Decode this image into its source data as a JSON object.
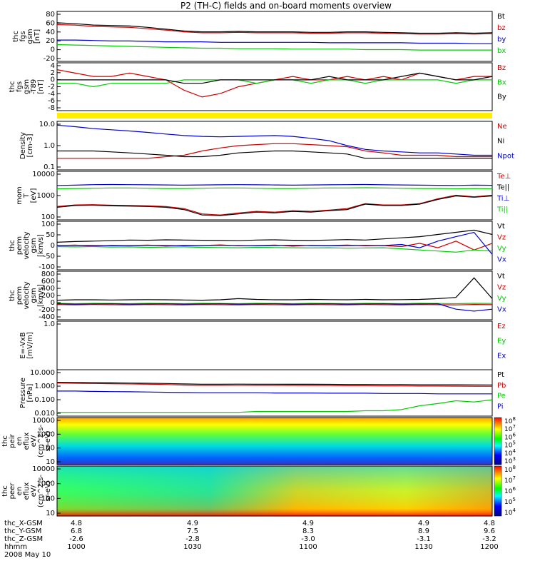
{
  "title": "P2 (TH-C) fields and on-board moments overview",
  "chart_data": [
    {
      "type": "line",
      "panel": "fgs_gsm",
      "ylabel": [
        "thc",
        "fgs",
        "gsm",
        "[nT]"
      ],
      "yticks": [
        "80",
        "60",
        "40",
        "20",
        "0",
        "-20"
      ],
      "ylim": [
        -25,
        85
      ],
      "series": [
        {
          "name": "Bt",
          "color": "#000000",
          "values": [
            60,
            58,
            55,
            54,
            53,
            50,
            46,
            42,
            40,
            40,
            41,
            40,
            40,
            40,
            39,
            39,
            40,
            40,
            39,
            38,
            37,
            37,
            38,
            37,
            38
          ]
        },
        {
          "name": "bz",
          "color": "#cc0000",
          "values": [
            56,
            55,
            52,
            51,
            50,
            47,
            44,
            40,
            38,
            38,
            39,
            38,
            38,
            38,
            37,
            37,
            38,
            38,
            37,
            36,
            35,
            35,
            36,
            35,
            36
          ]
        },
        {
          "name": "by",
          "color": "#0000cc",
          "values": [
            22,
            22,
            21,
            20,
            20,
            19,
            18,
            18,
            18,
            17,
            17,
            17,
            17,
            17,
            17,
            16,
            16,
            16,
            16,
            16,
            15,
            15,
            15,
            14,
            14
          ]
        },
        {
          "name": "bx",
          "color": "#00cc00",
          "values": [
            12,
            11,
            10,
            9,
            8,
            7,
            6,
            5,
            4,
            4,
            3,
            3,
            3,
            2,
            2,
            2,
            2,
            1,
            1,
            1,
            0,
            0,
            0,
            0,
            0
          ]
        }
      ]
    },
    {
      "type": "line",
      "panel": "fgs_gsm_dt",
      "ylabel": [
        "thc",
        "fgs",
        "gsm",
        "-T89",
        "[nT]"
      ],
      "yticks": [
        "4",
        "2",
        "0",
        "-2",
        "-4",
        "-6",
        "-8"
      ],
      "ylim": [
        -9,
        5
      ],
      "series": [
        {
          "name": "Bz",
          "color": "#cc0000",
          "values": [
            3,
            2,
            1,
            1,
            2,
            1,
            0,
            -3,
            -5,
            -4,
            -2,
            -1,
            0,
            1,
            0,
            0,
            1,
            0,
            1,
            0,
            2,
            1,
            0,
            1,
            1
          ]
        },
        {
          "name": "Bx",
          "color": "#00cc00",
          "values": [
            -1,
            -1,
            -2,
            -1,
            -1,
            -1,
            -1,
            0,
            0,
            0,
            0,
            -1,
            0,
            0,
            -1,
            0,
            0,
            -1,
            0,
            0,
            0,
            0,
            -1,
            0,
            0
          ]
        },
        {
          "name": "By",
          "color": "#000000",
          "values": [
            0,
            0,
            0,
            0,
            0,
            0,
            0,
            -1,
            -1,
            0,
            0,
            0,
            0,
            0,
            0,
            1,
            0,
            0,
            0,
            1,
            2,
            1,
            0,
            0,
            1
          ]
        }
      ]
    },
    {
      "type": "line",
      "panel": "density",
      "ylabel": [
        "Density",
        "[cm-3]"
      ],
      "yticks": [
        "10.0",
        "1.0",
        "0.1"
      ],
      "log": true,
      "ylim": [
        0.1,
        10
      ],
      "series": [
        {
          "name": "Ne",
          "color": "#cc0000",
          "values": [
            0.3,
            0.3,
            0.3,
            0.3,
            0.3,
            0.3,
            0.35,
            0.4,
            0.6,
            0.8,
            1.0,
            1.1,
            1.2,
            1.2,
            1.1,
            1.0,
            0.9,
            0.6,
            0.5,
            0.4,
            0.4,
            0.4,
            0.35,
            0.35,
            0.35
          ]
        },
        {
          "name": "Ni",
          "color": "#000000",
          "values": [
            0.6,
            0.6,
            0.6,
            0.55,
            0.5,
            0.45,
            0.4,
            0.35,
            0.35,
            0.4,
            0.5,
            0.55,
            0.6,
            0.6,
            0.55,
            0.5,
            0.45,
            0.3,
            0.3,
            0.3,
            0.3,
            0.3,
            0.3,
            0.3,
            0.3
          ]
        },
        {
          "name": "Npot",
          "color": "#0000cc",
          "values": [
            7,
            6,
            5,
            4.5,
            4,
            3.5,
            3,
            2.6,
            2.4,
            2.3,
            2.4,
            2.5,
            2.6,
            2.4,
            2.0,
            1.6,
            1.0,
            0.7,
            0.6,
            0.55,
            0.5,
            0.5,
            0.45,
            0.4,
            0.4
          ]
        }
      ]
    },
    {
      "type": "line",
      "panel": "mom_T",
      "ylabel": [
        "mom",
        "T",
        "[eV]"
      ],
      "yticks": [
        "10000",
        "1000",
        "100"
      ],
      "log": true,
      "ylim": [
        30,
        30000
      ],
      "series": [
        {
          "name": "Te⊥",
          "color": "#cc0000",
          "values": [
            200,
            250,
            260,
            240,
            230,
            220,
            200,
            150,
            70,
            60,
            80,
            100,
            90,
            110,
            100,
            120,
            150,
            300,
            250,
            250,
            300,
            600,
            1000,
            800,
            1000
          ]
        },
        {
          "name": "Te||",
          "color": "#000000",
          "values": [
            180,
            230,
            240,
            220,
            210,
            200,
            180,
            130,
            60,
            55,
            70,
            90,
            80,
            100,
            90,
            110,
            130,
            280,
            230,
            230,
            280,
            550,
            900,
            750,
            900
          ]
        },
        {
          "name": "Ti⊥",
          "color": "#0000cc",
          "values": [
            4000,
            4200,
            4500,
            4600,
            4500,
            4400,
            4300,
            4200,
            4300,
            4400,
            4500,
            4400,
            4300,
            4200,
            4300,
            4400,
            4500,
            4600,
            4400,
            4300,
            4200,
            4100,
            4000,
            4200,
            4100
          ]
        },
        {
          "name": "Ti||",
          "color": "#00cc00",
          "values": [
            2500,
            2600,
            2700,
            2800,
            2800,
            2700,
            2600,
            2600,
            2700,
            2800,
            2800,
            2700,
            2600,
            2600,
            2700,
            2800,
            2800,
            2900,
            2800,
            2700,
            2600,
            2600,
            2500,
            2600,
            2500
          ]
        }
      ]
    },
    {
      "type": "line",
      "panel": "perm_velocity",
      "ylabel": [
        "thc",
        "perm",
        "velocity",
        "gsm",
        "[km/s]"
      ],
      "yticks": [
        "100",
        "50",
        "0",
        "-50",
        "-100"
      ],
      "ylim": [
        -110,
        110
      ],
      "series": [
        {
          "name": "Vt",
          "color": "#000000",
          "values": [
            15,
            18,
            20,
            22,
            25,
            24,
            26,
            25,
            24,
            23,
            22,
            25,
            26,
            24,
            23,
            25,
            27,
            25,
            30,
            35,
            40,
            50,
            60,
            70,
            50
          ]
        },
        {
          "name": "Vz",
          "color": "#cc0000",
          "values": [
            0,
            2,
            -3,
            1,
            0,
            2,
            -2,
            1,
            0,
            3,
            -1,
            0,
            2,
            -3,
            1,
            0,
            2,
            -1,
            0,
            -5,
            10,
            -10,
            20,
            -20,
            10
          ]
        },
        {
          "name": "Vy",
          "color": "#00cc00",
          "values": [
            -5,
            -6,
            -5,
            -7,
            -6,
            -8,
            -7,
            -6,
            -8,
            -9,
            -10,
            -8,
            -9,
            -10,
            -11,
            -10,
            -12,
            -11,
            -10,
            -15,
            -20,
            -25,
            -30,
            -20,
            -25
          ]
        },
        {
          "name": "Vx",
          "color": "#0000cc",
          "values": [
            0,
            1,
            0,
            -1,
            0,
            1,
            0,
            -1,
            0,
            1,
            0,
            -1,
            0,
            1,
            0,
            -1,
            0,
            1,
            0,
            5,
            -10,
            20,
            40,
            60,
            -40
          ]
        }
      ]
    },
    {
      "type": "line",
      "panel": "perm_velocity_wide",
      "ylabel": [
        "thc",
        "perm",
        "velocity",
        "gsm",
        "[km/s]"
      ],
      "yticks": [
        "800",
        "600",
        "400",
        "200",
        "0",
        "-200",
        "-400"
      ],
      "ylim": [
        -420,
        820
      ],
      "series": [
        {
          "name": "Vt",
          "color": "#000000",
          "values": [
            80,
            90,
            90,
            85,
            90,
            95,
            90,
            85,
            80,
            90,
            120,
            100,
            90,
            90,
            100,
            95,
            90,
            100,
            90,
            95,
            100,
            120,
            150,
            650,
            120
          ]
        },
        {
          "name": "Vz",
          "color": "#cc0000",
          "values": [
            -30,
            -40,
            -30,
            -35,
            -40,
            -30,
            -35,
            -40,
            -30,
            -35,
            -40,
            -30,
            -35,
            -40,
            -30,
            -35,
            -40,
            -30,
            -35,
            -40,
            -30,
            -35,
            -40,
            -30,
            -35
          ]
        },
        {
          "name": "Vy",
          "color": "#00cc00",
          "values": [
            0,
            -10,
            0,
            -5,
            -10,
            0,
            -5,
            -10,
            0,
            -5,
            -10,
            0,
            -5,
            -10,
            0,
            -5,
            -10,
            0,
            -5,
            -10,
            0,
            -5,
            -10,
            0,
            -5
          ]
        },
        {
          "name": "Vx",
          "color": "#0000cc",
          "values": [
            -10,
            -20,
            -15,
            -10,
            -20,
            -15,
            -10,
            -20,
            -15,
            -10,
            -20,
            -15,
            -10,
            -20,
            -15,
            -10,
            -20,
            -15,
            -10,
            -20,
            -15,
            -10,
            -150,
            -200,
            -150
          ]
        }
      ]
    },
    {
      "type": "line",
      "panel": "efield",
      "ylabel": [
        "E=-VxB",
        "[mV/m]"
      ],
      "yticks": [
        "1.0"
      ],
      "series": [
        {
          "name": "Ez",
          "color": "#cc0000",
          "values": []
        },
        {
          "name": "Ey",
          "color": "#00cc00",
          "values": []
        },
        {
          "name": "Ex",
          "color": "#0000cc",
          "values": []
        }
      ]
    },
    {
      "type": "line",
      "panel": "pressure",
      "ylabel": [
        "Pressure",
        "[nPa]"
      ],
      "yticks": [
        "10.000",
        "1.000",
        "0.100",
        "0.010"
      ],
      "log": true,
      "ylim": [
        0.003,
        15
      ],
      "series": [
        {
          "name": "Pt",
          "color": "#000000",
          "values": [
            1.5,
            1.45,
            1.4,
            1.35,
            1.3,
            1.25,
            1.2,
            1.1,
            1.05,
            1.05,
            1.06,
            1.05,
            1.05,
            1.04,
            1.03,
            1.02,
            1.0,
            1.0,
            0.98,
            0.97,
            0.95,
            0.95,
            0.94,
            0.93,
            0.92
          ]
        },
        {
          "name": "Pb",
          "color": "#cc0000",
          "values": [
            1.3,
            1.25,
            1.2,
            1.15,
            1.1,
            1.05,
            1.0,
            0.9,
            0.85,
            0.85,
            0.86,
            0.85,
            0.85,
            0.84,
            0.83,
            0.82,
            0.8,
            0.8,
            0.78,
            0.77,
            0.75,
            0.75,
            0.74,
            0.73,
            0.72
          ]
        },
        {
          "name": "Pe",
          "color": "#00cc00",
          "values": [
            0.006,
            0.006,
            0.006,
            0.006,
            0.006,
            0.006,
            0.006,
            0.006,
            0.006,
            0.006,
            0.006,
            0.007,
            0.007,
            0.007,
            0.007,
            0.007,
            0.007,
            0.008,
            0.008,
            0.01,
            0.02,
            0.03,
            0.05,
            0.04,
            0.06
          ]
        },
        {
          "name": "Pi",
          "color": "#0000cc",
          "values": [
            0.3,
            0.3,
            0.28,
            0.27,
            0.26,
            0.25,
            0.24,
            0.23,
            0.22,
            0.22,
            0.22,
            0.22,
            0.21,
            0.21,
            0.21,
            0.2,
            0.2,
            0.2,
            0.19,
            0.19,
            0.19,
            0.18,
            0.18,
            0.18,
            0.18
          ]
        }
      ]
    },
    {
      "type": "heatmap",
      "panel": "peir_en_eflux",
      "ylabel": [
        "thc",
        "peir",
        "en",
        "eflux",
        "eV/",
        "(cm^2-s-",
        "sr-eV)"
      ],
      "yticks": [
        "10000",
        "1000",
        "100",
        "10"
      ],
      "colorbar": [
        "10^8",
        "10^7",
        "10^6",
        "10^5",
        "10^4",
        "10^3"
      ]
    },
    {
      "type": "heatmap",
      "panel": "peer_en_eflux",
      "ylabel": [
        "thc",
        "peer",
        "en",
        "eflux",
        "eV/",
        "(cm^2-s-",
        "sr-eV)"
      ],
      "yticks": [
        "10000",
        "1000",
        "100",
        "10"
      ],
      "colorbar": [
        "10^8",
        "10^7",
        "10^6",
        "10^5",
        "10^4"
      ]
    }
  ],
  "footer": {
    "rows": [
      "thc_X-GSM",
      "thc_Y-GSM",
      "thc_Z-GSM",
      "hhmm",
      "2008 May 10"
    ],
    "cols": [
      {
        "x": "4.8",
        "y": "6.8",
        "z": "-2.6",
        "t": "1000"
      },
      {
        "x": "4.9",
        "y": "7.5",
        "z": "-2.8",
        "t": "1030"
      },
      {
        "x": "4.9",
        "y": "8.3",
        "z": "-3.0",
        "t": "1100"
      },
      {
        "x": "4.9",
        "y": "8.9",
        "z": "-3.1",
        "t": "1130"
      },
      {
        "x": "4.8",
        "y": "9.6",
        "z": "-3.2",
        "t": "1200"
      }
    ]
  }
}
